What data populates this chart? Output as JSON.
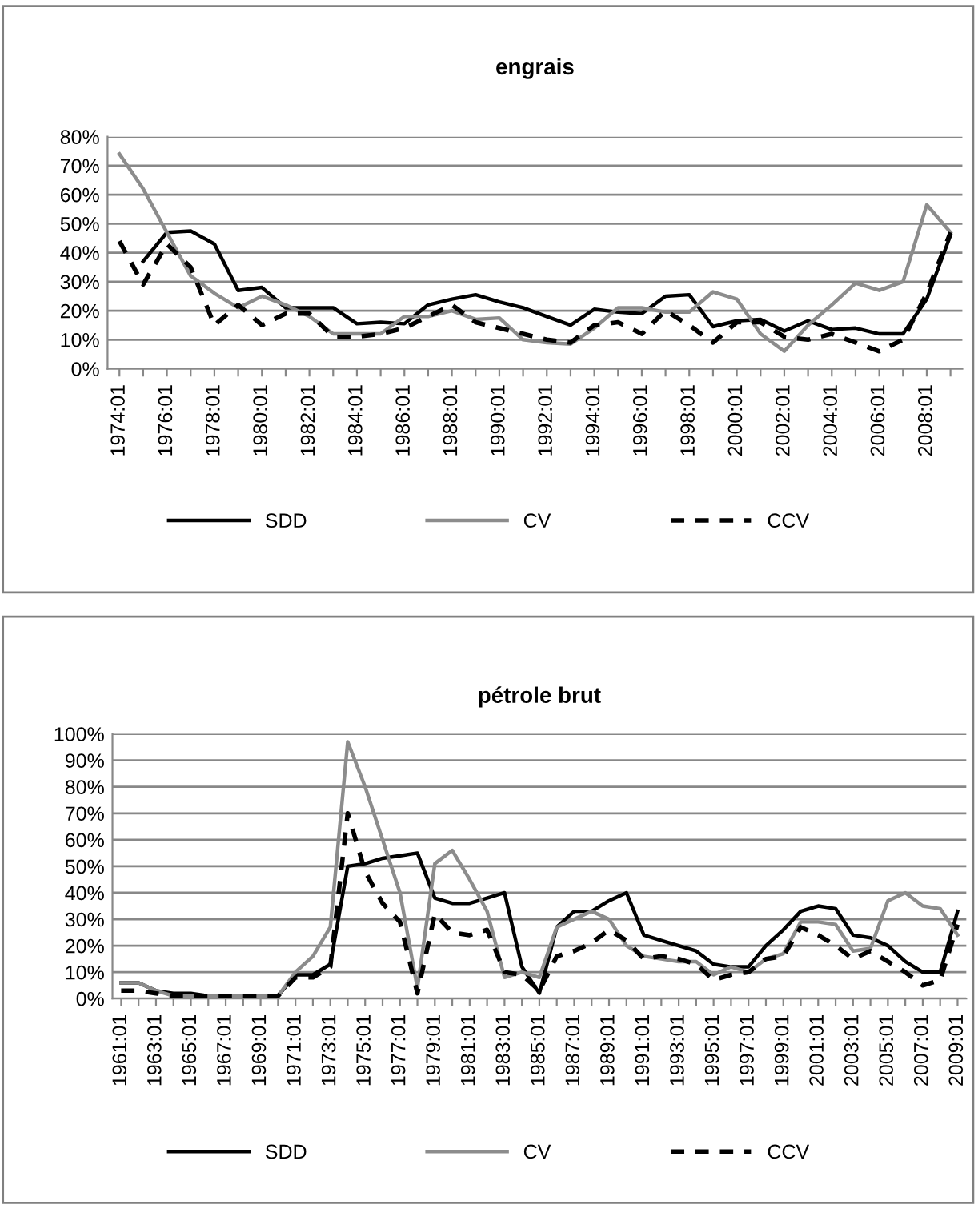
{
  "chart_data": [
    {
      "type": "line",
      "title": "engrais",
      "categories": [
        "1974:01",
        null,
        "1976:01",
        null,
        "1978:01",
        null,
        "1980:01",
        null,
        "1982:01",
        null,
        "1984:01",
        null,
        "1986:01",
        null,
        "1988:01",
        null,
        "1990:01",
        null,
        "1992:01",
        null,
        "1994:01",
        null,
        "1996:01",
        null,
        "1998:01",
        null,
        "2000:01",
        null,
        "2002:01",
        null,
        "2004:01",
        null,
        "2006:01",
        null,
        "2008:01",
        null
      ],
      "series": [
        {
          "name": "SDD",
          "color": "#000000",
          "line_style": "solid",
          "values": [
            null,
            37,
            47,
            47.5,
            43,
            27,
            28,
            21,
            21,
            21,
            15.5,
            16,
            15.5,
            22,
            24,
            25.5,
            23,
            21,
            18,
            15,
            20.5,
            19.5,
            19,
            25,
            25.5,
            14.5,
            16.5,
            17,
            13,
            16.5,
            13.5,
            14,
            12,
            12,
            24,
            46
          ]
        },
        {
          "name": "CV",
          "color": "#8c8c8c",
          "line_style": "solid",
          "values": [
            74,
            62,
            47,
            32,
            26,
            21,
            25,
            22,
            18,
            12,
            12,
            12,
            18,
            18,
            20,
            17,
            17.5,
            10,
            9,
            8.5,
            14,
            21,
            21,
            19.5,
            19.5,
            26.5,
            24,
            12,
            6,
            15,
            22,
            29.5,
            27,
            30,
            56.5,
            47
          ]
        },
        {
          "name": "CCV",
          "color": "#000000",
          "line_style": "dashed",
          "values": [
            44,
            29,
            43,
            35,
            15,
            22,
            15,
            19,
            19,
            11,
            11,
            12,
            14,
            18,
            22,
            16,
            14,
            12,
            10,
            9,
            15,
            16,
            12,
            20,
            15,
            9,
            16,
            16,
            11,
            10,
            12,
            9,
            6,
            10,
            26,
            47
          ]
        }
      ],
      "ylim": [
        0,
        80
      ],
      "yticks": [
        {
          "value": 0,
          "label": "0%"
        },
        {
          "value": 10,
          "label": "10%"
        },
        {
          "value": 20,
          "label": "20%"
        },
        {
          "value": 30,
          "label": "30%"
        },
        {
          "value": 40,
          "label": "40%"
        },
        {
          "value": 50,
          "label": "50%"
        },
        {
          "value": 60,
          "label": "60%"
        },
        {
          "value": 70,
          "label": "70%"
        },
        {
          "value": 80,
          "label": "80%"
        }
      ],
      "grid": "y",
      "legend": "bottom"
    },
    {
      "type": "line",
      "title": "pétrole brut",
      "categories": [
        "1961:01",
        null,
        "1963:01",
        null,
        "1965:01",
        null,
        "1967:01",
        null,
        "1969:01",
        null,
        "1971:01",
        null,
        "1973:01",
        null,
        "1975:01",
        null,
        "1977:01",
        null,
        "1979:01",
        null,
        "1981:01",
        null,
        "1983:01",
        null,
        "1985:01",
        null,
        "1987:01",
        null,
        "1989:01",
        null,
        "1991:01",
        null,
        "1993:01",
        null,
        "1995:01",
        null,
        "1997:01",
        null,
        "1999:01",
        null,
        "2001:01",
        null,
        "2003:01",
        null,
        "2005:01",
        null,
        "2007:01",
        null,
        "2009:01"
      ],
      "series": [
        {
          "name": "SDD",
          "color": "#000000",
          "line_style": "solid",
          "values": [
            6,
            6,
            3,
            2,
            2,
            1,
            1,
            1,
            1,
            1,
            9,
            9,
            13,
            50,
            51,
            53,
            54,
            55,
            38,
            36,
            36,
            38,
            40,
            12,
            2,
            27,
            33,
            33,
            37,
            40,
            24,
            22,
            20,
            18,
            13,
            12,
            12,
            20,
            26,
            33,
            35,
            34,
            24,
            23,
            20,
            14,
            10,
            10,
            33
          ]
        },
        {
          "name": "CV",
          "color": "#8c8c8c",
          "line_style": "solid",
          "values": [
            6,
            6,
            3,
            1,
            1,
            1,
            1,
            1,
            1,
            1,
            10,
            16,
            27,
            97,
            80,
            60,
            40,
            4,
            51,
            56,
            45,
            33,
            8,
            10,
            8,
            27,
            30,
            33,
            30,
            20,
            16,
            15,
            14,
            14,
            9,
            12,
            10,
            15,
            17,
            29,
            29,
            28,
            18,
            19,
            37,
            40,
            35,
            34,
            24
          ]
        },
        {
          "name": "CCV",
          "color": "#000000",
          "line_style": "dashed",
          "values": [
            3,
            3,
            2,
            1,
            1,
            1,
            1,
            1,
            1,
            1,
            8,
            8,
            12,
            70,
            48,
            36,
            29,
            2,
            32,
            25,
            24,
            26,
            10,
            9,
            3,
            16,
            18,
            21,
            26,
            22,
            15,
            16,
            15,
            13,
            7,
            9,
            10,
            15,
            16,
            27,
            24,
            20,
            15,
            18,
            14,
            10,
            5,
            7,
            28
          ]
        }
      ],
      "ylim": [
        0,
        100
      ],
      "yticks": [
        {
          "value": 0,
          "label": "0%"
        },
        {
          "value": 10,
          "label": "10%"
        },
        {
          "value": 20,
          "label": "20%"
        },
        {
          "value": 30,
          "label": "30%"
        },
        {
          "value": 40,
          "label": "40%"
        },
        {
          "value": 50,
          "label": "50%"
        },
        {
          "value": 60,
          "label": "60%"
        },
        {
          "value": 70,
          "label": "70%"
        },
        {
          "value": 80,
          "label": "80%"
        },
        {
          "value": 90,
          "label": "90%"
        },
        {
          "value": 100,
          "label": "100%"
        }
      ],
      "grid": "y",
      "legend": "bottom"
    }
  ]
}
